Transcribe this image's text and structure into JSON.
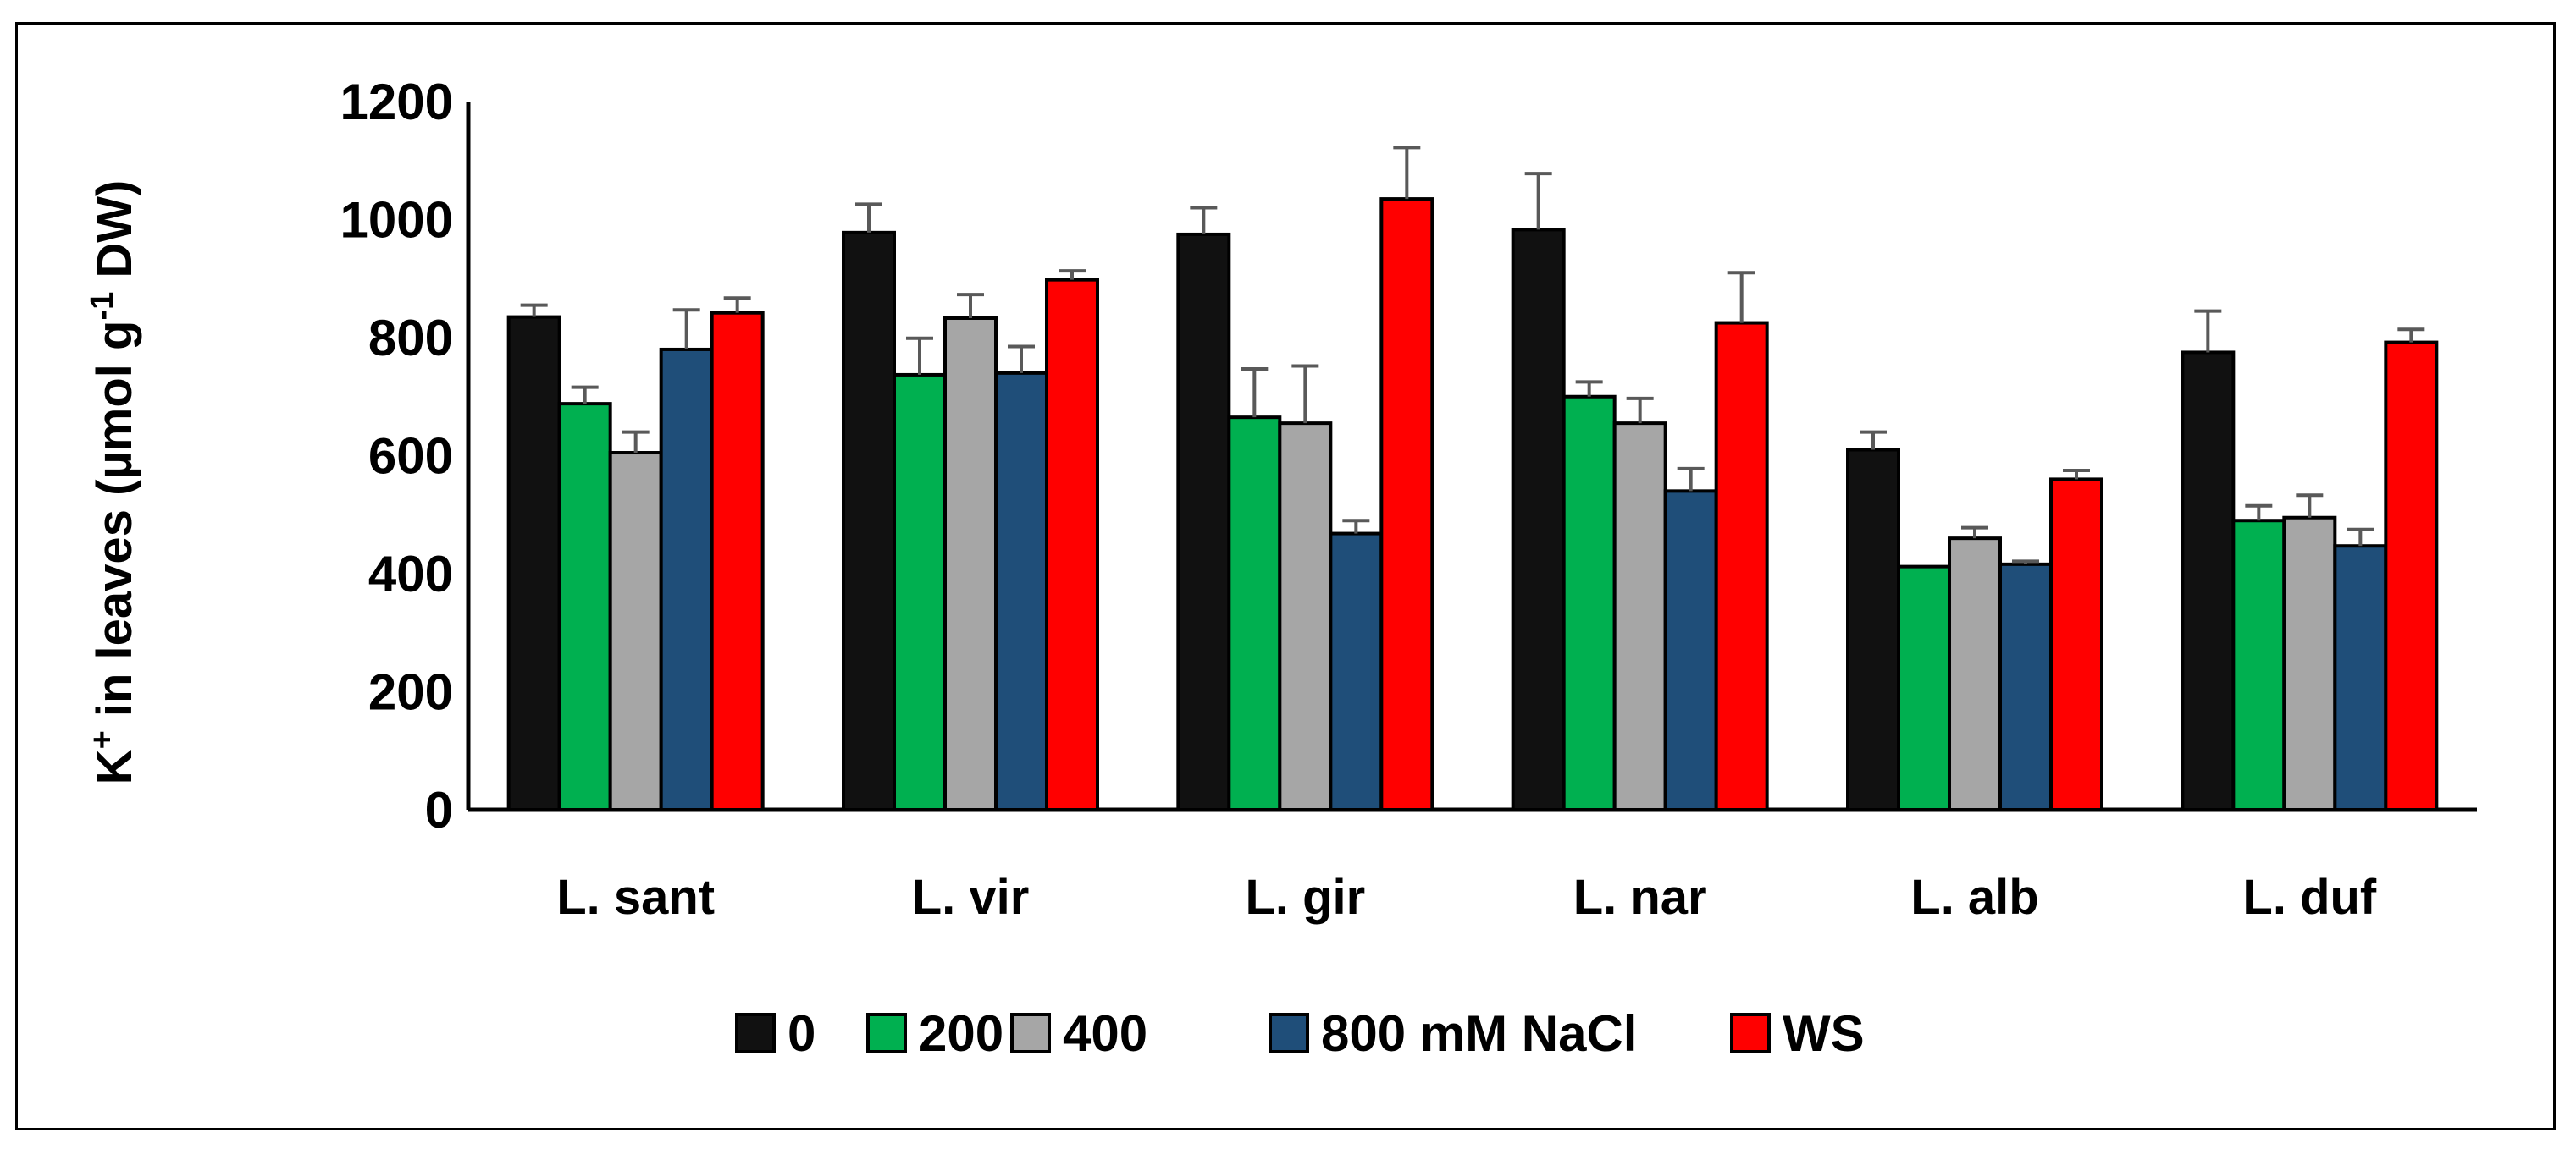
{
  "chart_data": {
    "type": "bar",
    "title": "",
    "xlabel": "",
    "ylabel": {
      "prefix": "K",
      "prefix_sup": "+",
      "middle": " in leaves (µmol g",
      "middle_sup": "-1",
      "suffix": " DW)"
    },
    "ylim": [
      0,
      1200
    ],
    "yticks": [
      0,
      200,
      400,
      600,
      800,
      1000,
      1200
    ],
    "grid": false,
    "legend_position": "bottom",
    "categories": [
      "L. sant",
      "L. vir",
      "L. gir",
      "L. nar",
      "L. alb",
      "L. duf"
    ],
    "series": [
      {
        "name": "0",
        "color": "#111111",
        "values": [
          835,
          978,
          975,
          983,
          610,
          775
        ],
        "errors": [
          20,
          48,
          45,
          95,
          30,
          70
        ]
      },
      {
        "name": "200",
        "color": "#00b050",
        "values": [
          688,
          737,
          665,
          700,
          412,
          490
        ],
        "errors": [
          28,
          62,
          82,
          25,
          0,
          25
        ]
      },
      {
        "name": "400",
        "color": "#a6a6a6",
        "values": [
          605,
          833,
          655,
          655,
          460,
          495
        ],
        "errors": [
          35,
          40,
          97,
          42,
          18,
          38
        ]
      },
      {
        "name": "800 mM NaCl",
        "color": "#1f4e79",
        "values": [
          780,
          740,
          468,
          540,
          416,
          447
        ],
        "errors": [
          67,
          45,
          22,
          38,
          5,
          28
        ]
      },
      {
        "name": "WS",
        "color": "#ff0000",
        "values": [
          842,
          898,
          1035,
          825,
          560,
          792
        ],
        "errors": [
          25,
          15,
          87,
          85,
          15,
          22
        ]
      }
    ]
  }
}
